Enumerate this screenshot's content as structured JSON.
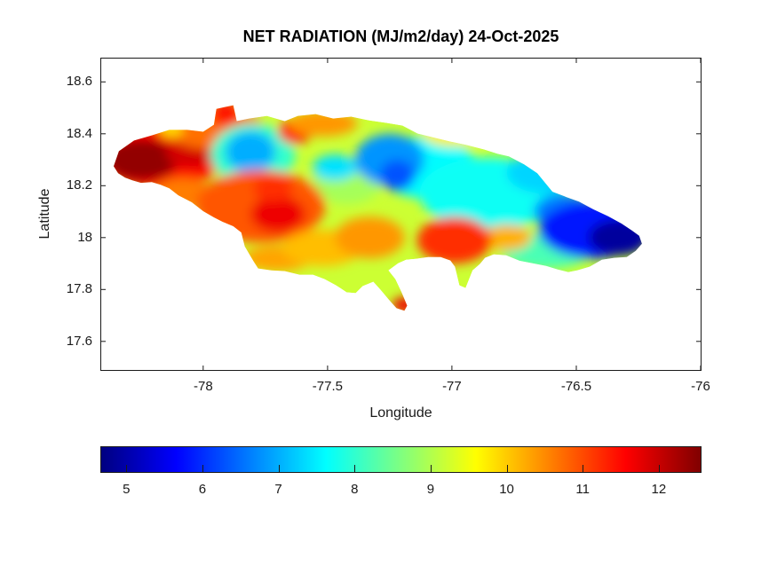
{
  "figure": {
    "background": "#ffffff",
    "axis_color": "#1a1a1a",
    "title_color": "#000000"
  },
  "chart_data": {
    "type": "heatmap",
    "subtype": "filled-contour-map",
    "region": "Jamaica",
    "title": "NET RADIATION (MJ/m2/day) 24-Oct-2025",
    "xlabel": "Longitude",
    "ylabel": "Latitude",
    "xlim": [
      -78.41,
      -76.0
    ],
    "ylim": [
      17.49,
      18.69
    ],
    "grid": false,
    "x_ticks": [
      -78,
      -77.5,
      -77,
      -76.5,
      -76
    ],
    "x_tick_labels": [
      "-78",
      "-77.5",
      "-77",
      "-76.5",
      "-76"
    ],
    "y_ticks": [
      18.6,
      18.4,
      18.2,
      18.0,
      17.8,
      17.6
    ],
    "y_tick_labels": [
      "18.6",
      "18.4",
      "18.2",
      "18",
      "17.8",
      "17.6"
    ],
    "colorbar": {
      "orientation": "horizontal",
      "colormap": "jet",
      "min": 4.67,
      "max": 12.55,
      "ticks": [
        5,
        6,
        7,
        8,
        9,
        10,
        11,
        12
      ],
      "tick_labels": [
        "5",
        "6",
        "7",
        "8",
        "9",
        "10",
        "11",
        "12"
      ]
    },
    "base_value": 9.2,
    "island_outline": [
      [
        -78.36,
        18.275
      ],
      [
        -78.339,
        18.333
      ],
      [
        -78.278,
        18.374
      ],
      [
        -78.207,
        18.394
      ],
      [
        -78.136,
        18.415
      ],
      [
        -78.064,
        18.415
      ],
      [
        -78.0,
        18.408
      ],
      [
        -77.957,
        18.435
      ],
      [
        -77.947,
        18.496
      ],
      [
        -77.879,
        18.51
      ],
      [
        -77.865,
        18.449
      ],
      [
        -77.815,
        18.459
      ],
      [
        -77.744,
        18.469
      ],
      [
        -77.672,
        18.449
      ],
      [
        -77.619,
        18.469
      ],
      [
        -77.548,
        18.476
      ],
      [
        -77.477,
        18.459
      ],
      [
        -77.405,
        18.466
      ],
      [
        -77.334,
        18.452
      ],
      [
        -77.263,
        18.442
      ],
      [
        -77.199,
        18.432
      ],
      [
        -77.138,
        18.401
      ],
      [
        -77.067,
        18.384
      ],
      [
        -77.006,
        18.37
      ],
      [
        -76.942,
        18.357
      ],
      [
        -76.871,
        18.34
      ],
      [
        -76.817,
        18.323
      ],
      [
        -76.771,
        18.313
      ],
      [
        -76.71,
        18.282
      ],
      [
        -76.657,
        18.248
      ],
      [
        -76.596,
        18.177
      ],
      [
        -76.539,
        18.156
      ],
      [
        -76.489,
        18.139
      ],
      [
        -76.432,
        18.109
      ],
      [
        -76.372,
        18.082
      ],
      [
        -76.318,
        18.054
      ],
      [
        -76.276,
        18.027
      ],
      [
        -76.247,
        18.007
      ],
      [
        -76.236,
        17.976
      ],
      [
        -76.261,
        17.949
      ],
      [
        -76.297,
        17.925
      ],
      [
        -76.347,
        17.922
      ],
      [
        -76.397,
        17.915
      ],
      [
        -76.446,
        17.888
      ],
      [
        -76.496,
        17.874
      ],
      [
        -76.532,
        17.867
      ],
      [
        -76.575,
        17.877
      ],
      [
        -76.621,
        17.891
      ],
      [
        -76.675,
        17.901
      ],
      [
        -76.728,
        17.911
      ],
      [
        -76.782,
        17.932
      ],
      [
        -76.832,
        17.935
      ],
      [
        -76.867,
        17.922
      ],
      [
        -76.888,
        17.898
      ],
      [
        -76.917,
        17.874
      ],
      [
        -76.945,
        17.806
      ],
      [
        -76.97,
        17.816
      ],
      [
        -76.988,
        17.888
      ],
      [
        -77.006,
        17.912
      ],
      [
        -77.045,
        17.925
      ],
      [
        -77.095,
        17.925
      ],
      [
        -77.145,
        17.918
      ],
      [
        -77.184,
        17.915
      ],
      [
        -77.216,
        17.901
      ],
      [
        -77.255,
        17.874
      ],
      [
        -77.227,
        17.84
      ],
      [
        -77.202,
        17.789
      ],
      [
        -77.18,
        17.738
      ],
      [
        -77.191,
        17.718
      ],
      [
        -77.223,
        17.728
      ],
      [
        -77.255,
        17.762
      ],
      [
        -77.287,
        17.799
      ],
      [
        -77.316,
        17.83
      ],
      [
        -77.359,
        17.813
      ],
      [
        -77.387,
        17.786
      ],
      [
        -77.423,
        17.789
      ],
      [
        -77.466,
        17.816
      ],
      [
        -77.512,
        17.84
      ],
      [
        -77.558,
        17.857
      ],
      [
        -77.612,
        17.857
      ],
      [
        -77.672,
        17.871
      ],
      [
        -77.726,
        17.874
      ],
      [
        -77.779,
        17.881
      ],
      [
        -77.797,
        17.908
      ],
      [
        -77.833,
        17.966
      ],
      [
        -77.847,
        18.02
      ],
      [
        -77.879,
        18.044
      ],
      [
        -77.922,
        18.061
      ],
      [
        -77.957,
        18.078
      ],
      [
        -78.0,
        18.102
      ],
      [
        -78.046,
        18.136
      ],
      [
        -78.1,
        18.163
      ],
      [
        -78.136,
        18.19
      ],
      [
        -78.171,
        18.204
      ],
      [
        -78.207,
        18.214
      ],
      [
        -78.25,
        18.211
      ],
      [
        -78.285,
        18.221
      ],
      [
        -78.314,
        18.231
      ],
      [
        -78.342,
        18.248
      ]
    ],
    "field_blobs": [
      {
        "name": "west-red-broad",
        "lon": -78.17,
        "lat": 18.32,
        "rx": 0.26,
        "ry": 0.13,
        "value": 11.5
      },
      {
        "name": "west-darkred-core",
        "lon": -78.25,
        "lat": 18.3,
        "rx": 0.15,
        "ry": 0.08,
        "value": 12.4
      },
      {
        "name": "west-darkred-2",
        "lon": -78.05,
        "lat": 18.33,
        "rx": 0.1,
        "ry": 0.06,
        "value": 11.9
      },
      {
        "name": "nw-orange-coast",
        "lon": -77.95,
        "lat": 18.42,
        "rx": 0.2,
        "ry": 0.08,
        "value": 10.7
      },
      {
        "name": "montego-red-notch",
        "lon": -77.91,
        "lat": 18.48,
        "rx": 0.06,
        "ry": 0.05,
        "value": 11.4
      },
      {
        "name": "nw-yellow-spot",
        "lon": -78.13,
        "lat": 18.42,
        "rx": 0.05,
        "ry": 0.035,
        "value": 9.9
      },
      {
        "name": "sw-orange-under",
        "lon": -78.08,
        "lat": 18.17,
        "rx": 0.12,
        "ry": 0.06,
        "value": 10.6
      },
      {
        "name": "nw-cyan-ring",
        "lon": -77.8,
        "lat": 18.32,
        "rx": 0.17,
        "ry": 0.12,
        "value": 8.0
      },
      {
        "name": "nw-blue-patch",
        "lon": -77.81,
        "lat": 18.33,
        "rx": 0.1,
        "ry": 0.08,
        "value": 7.0
      },
      {
        "name": "north-red-falmouth",
        "lon": -77.63,
        "lat": 18.41,
        "rx": 0.07,
        "ry": 0.05,
        "value": 11.3
      },
      {
        "name": "north-orange-band",
        "lon": -77.52,
        "lat": 18.44,
        "rx": 0.14,
        "ry": 0.05,
        "value": 10.4
      },
      {
        "name": "center-green-soften",
        "lon": -77.42,
        "lat": 18.22,
        "rx": 0.14,
        "ry": 0.09,
        "value": 8.9
      },
      {
        "name": "center-cyan-spot",
        "lon": -77.47,
        "lat": 18.27,
        "rx": 0.09,
        "ry": 0.05,
        "value": 7.4
      },
      {
        "name": "sw-orange-mass",
        "lon": -77.77,
        "lat": 18.12,
        "rx": 0.26,
        "ry": 0.14,
        "value": 10.9
      },
      {
        "name": "sw-red-core",
        "lon": -77.7,
        "lat": 18.09,
        "rx": 0.11,
        "ry": 0.07,
        "value": 11.7
      },
      {
        "name": "west-red-spot-2",
        "lon": -77.72,
        "lat": 18.19,
        "rx": 0.08,
        "ry": 0.05,
        "value": 11.2
      },
      {
        "name": "south-coast-orange-w",
        "lon": -77.7,
        "lat": 17.92,
        "rx": 0.14,
        "ry": 0.05,
        "value": 10.3
      },
      {
        "name": "south-yellow-mid",
        "lon": -77.52,
        "lat": 17.96,
        "rx": 0.16,
        "ry": 0.07,
        "value": 10.1
      },
      {
        "name": "south-orange-mid",
        "lon": -77.33,
        "lat": 18.0,
        "rx": 0.14,
        "ry": 0.08,
        "value": 10.4
      },
      {
        "name": "center-cyan",
        "lon": -77.1,
        "lat": 18.27,
        "rx": 0.2,
        "ry": 0.12,
        "value": 7.6
      },
      {
        "name": "center-blue-top",
        "lon": -77.25,
        "lat": 18.3,
        "rx": 0.14,
        "ry": 0.1,
        "value": 6.8
      },
      {
        "name": "center-blue-core",
        "lon": -77.22,
        "lat": 18.24,
        "rx": 0.07,
        "ry": 0.06,
        "value": 6.3
      },
      {
        "name": "centereast-cyan-big",
        "lon": -76.85,
        "lat": 18.17,
        "rx": 0.28,
        "ry": 0.14,
        "value": 7.7
      },
      {
        "name": "ne-cyan-coast",
        "lon": -76.62,
        "lat": 18.25,
        "rx": 0.16,
        "ry": 0.08,
        "value": 7.3
      },
      {
        "name": "north-yellow-coast",
        "lon": -76.99,
        "lat": 18.4,
        "rx": 0.13,
        "ry": 0.05,
        "value": 9.7
      },
      {
        "name": "se-green-coast",
        "lon": -76.62,
        "lat": 17.95,
        "rx": 0.18,
        "ry": 0.07,
        "value": 8.2
      },
      {
        "name": "se-orange-strip",
        "lon": -76.78,
        "lat": 18.0,
        "rx": 0.1,
        "ry": 0.05,
        "value": 10.2
      },
      {
        "name": "east-blue-fringe",
        "lon": -76.55,
        "lat": 18.1,
        "rx": 0.12,
        "ry": 0.07,
        "value": 6.6
      },
      {
        "name": "east-blue",
        "lon": -76.43,
        "lat": 18.03,
        "rx": 0.22,
        "ry": 0.11,
        "value": 5.8
      },
      {
        "name": "east-navy-core",
        "lon": -76.33,
        "lat": 18.0,
        "rx": 0.12,
        "ry": 0.07,
        "value": 4.9
      },
      {
        "name": "kingston-red",
        "lon": -76.99,
        "lat": 17.99,
        "rx": 0.15,
        "ry": 0.09,
        "value": 11.2
      },
      {
        "name": "portland-point-red-tip",
        "lon": -77.19,
        "lat": 17.74,
        "rx": 0.05,
        "ry": 0.03,
        "value": 11.7
      }
    ]
  }
}
